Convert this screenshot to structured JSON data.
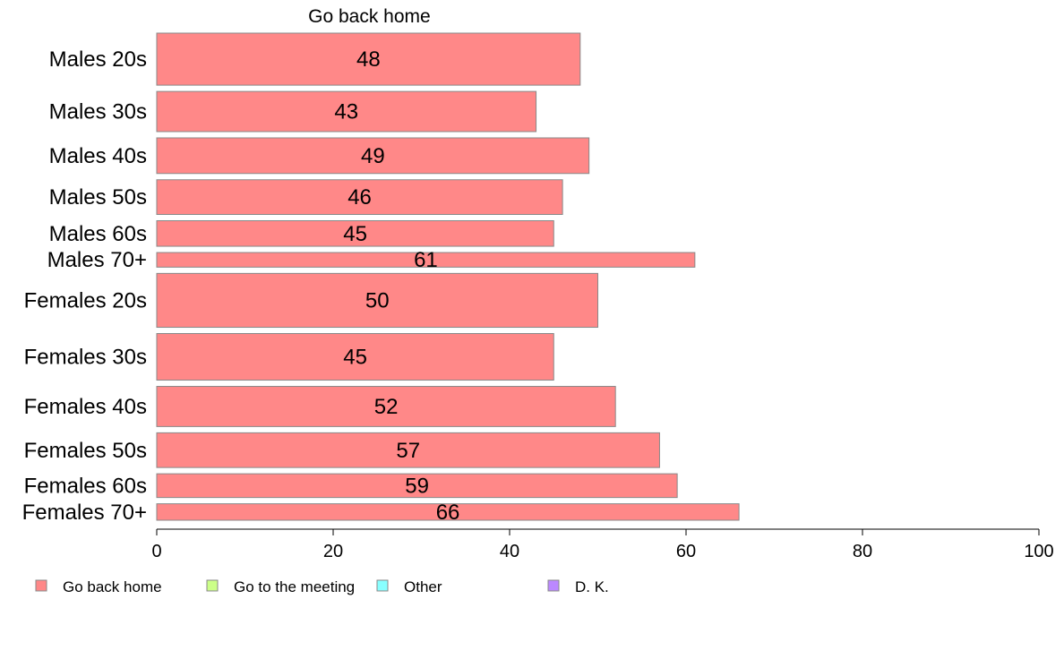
{
  "chart_data": {
    "type": "bar",
    "orientation": "horizontal",
    "stacked": true,
    "title": "Go back home",
    "categories": [
      "Males 20s",
      "Males 30s",
      "Males 40s",
      "Males 50s",
      "Males 60s",
      "Males 70+",
      "Females 20s",
      "Females 30s",
      "Females 40s",
      "Females 50s",
      "Females 60s",
      "Females 70+"
    ],
    "relative_bar_widths": [
      57,
      44,
      39,
      38,
      28,
      16,
      59,
      51,
      44,
      38,
      26,
      18
    ],
    "series": [
      {
        "name": "Go back home",
        "color": "#ff8888",
        "values": [
          48,
          43,
          49,
          46,
          45,
          61,
          50,
          45,
          52,
          57,
          59,
          66
        ]
      }
    ],
    "xlim": [
      0,
      100
    ],
    "xticks": [
      0,
      20,
      40,
      60,
      80,
      100
    ],
    "grid": false,
    "legend_position": "bottom",
    "legend": [
      {
        "label": "Go back home",
        "color": "#ff8888"
      },
      {
        "label": "Go to the meeting",
        "color": "#ccff88"
      },
      {
        "label": "Other",
        "color": "#88ffff"
      },
      {
        "label": "D. K.",
        "color": "#bb88ff"
      }
    ]
  }
}
